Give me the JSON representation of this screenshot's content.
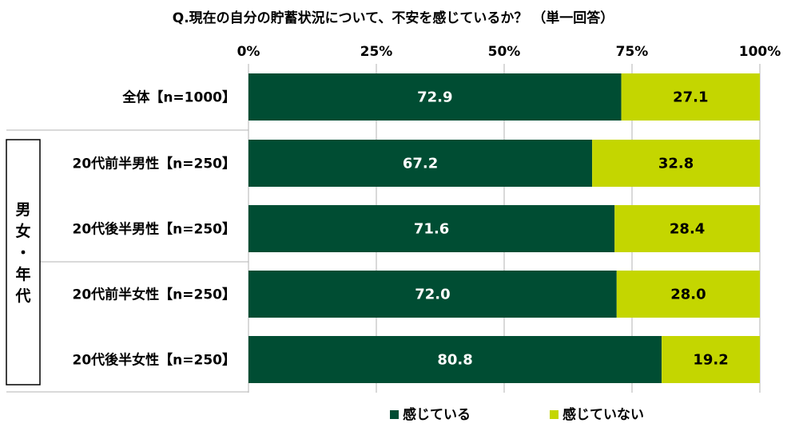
{
  "chart_data": {
    "type": "bar",
    "orientation": "horizontal",
    "stacked": true,
    "title": "Q.現在の自分の貯蓄状況について、不安を感じているか？ （単一回答）",
    "xlim": [
      0,
      100
    ],
    "x_ticks": [
      "0%",
      "25%",
      "50%",
      "75%",
      "100%"
    ],
    "categories": [
      "全体【n=1000】",
      "20代前半男性【n=250】",
      "20代後半男性【n=250】",
      "20代前半女性【n=250】",
      "20代後半女性【n=250】"
    ],
    "group_label": "男女・年代",
    "group_chars": [
      "男",
      "女",
      "・",
      "年",
      "代"
    ],
    "series": [
      {
        "name": "感じている",
        "color": "#004D33",
        "label_color": "#ffffff",
        "values": [
          72.9,
          67.2,
          71.6,
          72.0,
          80.8
        ],
        "labels": [
          "72.9",
          "67.2",
          "71.6",
          "72.0",
          "80.8"
        ]
      },
      {
        "name": "感じていない",
        "color": "#C4D600",
        "label_color": "#000000",
        "values": [
          27.1,
          32.8,
          28.4,
          28.0,
          19.2
        ],
        "labels": [
          "27.1",
          "32.8",
          "28.4",
          "28.0",
          "19.2"
        ]
      }
    ],
    "grid": true,
    "legend_position": "bottom"
  }
}
